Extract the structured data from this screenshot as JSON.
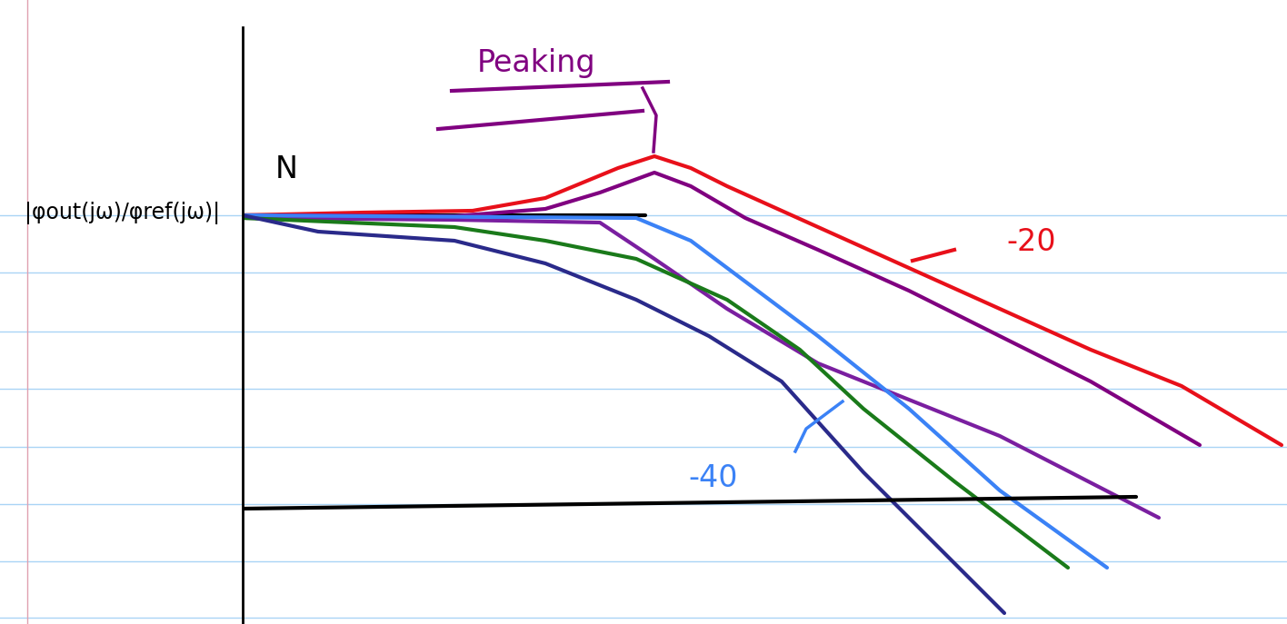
{
  "chart_data": {
    "type": "line",
    "ylabel": "|φout(jω)/φref(jω)|",
    "annotations": [
      {
        "text": "N",
        "color": "#000000"
      },
      {
        "text": "Peaking",
        "color": "#800080"
      },
      {
        "text": "-20",
        "color": "#e8101a"
      },
      {
        "text": "-40",
        "color": "#3b82f6"
      }
    ],
    "xlim": [
      0,
      1149
    ],
    "ylim": [
      0,
      657
    ],
    "tick_labels": false,
    "grid": false,
    "series": [
      {
        "color": "#000000",
        "x": [
          0,
          443
        ],
        "values": [
          450,
          450
        ]
      },
      {
        "color": "#e8101a",
        "x": [
          0,
          133,
          253,
          333,
          413,
          453,
          493,
          533,
          633,
          733,
          833,
          933,
          1033,
          1143
        ],
        "values": [
          450,
          453,
          455,
          469,
          502,
          515,
          502,
          482,
          437,
          392,
          347,
          302,
          262,
          197
        ]
      },
      {
        "color": "#800080",
        "x": [
          3,
          233,
          333,
          393,
          453,
          493,
          553,
          633,
          733,
          833,
          933,
          1053
        ],
        "values": [
          450,
          449,
          457,
          475,
          497,
          482,
          447,
          412,
          367,
          317,
          267,
          197
        ]
      },
      {
        "color": "#7a1fa0",
        "x": [
          3,
          233,
          393,
          453,
          533,
          633,
          733,
          833,
          1008
        ],
        "values": [
          447,
          445,
          442,
          402,
          347,
          287,
          247,
          207,
          117
        ]
      },
      {
        "color": "#3b82f6",
        "x": [
          0,
          433,
          493,
          553,
          633,
          733,
          833,
          951
        ],
        "values": [
          450,
          447,
          422,
          377,
          317,
          237,
          147,
          62
        ]
      },
      {
        "color": "#1a7a1a",
        "x": [
          0,
          233,
          333,
          433,
          533,
          613,
          683,
          783,
          908
        ],
        "values": [
          447,
          437,
          422,
          402,
          357,
          302,
          237,
          157,
          62
        ]
      },
      {
        "color": "#2a2a8a",
        "x": [
          0,
          83,
          233,
          333,
          433,
          513,
          593,
          683,
          783,
          838
        ],
        "values": [
          450,
          432,
          422,
          397,
          357,
          317,
          267,
          167,
          67,
          12
        ]
      },
      {
        "color": "#000000",
        "x": [
          0,
          983
        ],
        "values": [
          127,
          140
        ]
      }
    ]
  }
}
